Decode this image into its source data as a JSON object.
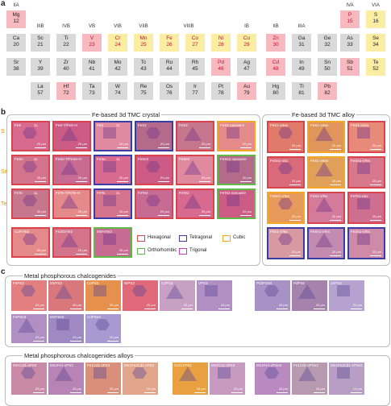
{
  "panels": {
    "a": "a",
    "b": "b",
    "c": "c"
  },
  "periodic_table": {
    "groups": [
      {
        "label": "IIA"
      },
      {
        "label": "IIIB"
      },
      {
        "label": "IVB"
      },
      {
        "label": "VB"
      },
      {
        "label": "VIB"
      },
      {
        "label": "VIIB"
      },
      {
        "label": "VIIIB"
      },
      {
        "label": "IB"
      },
      {
        "label": "IIB"
      },
      {
        "label": "IIIA"
      },
      {
        "label": "IVA"
      },
      {
        "label": "VIA"
      }
    ],
    "rows": [
      [
        {
          "s": "Mg",
          "n": "12",
          "c": "pink"
        }
      ],
      [
        {
          "s": "Ca",
          "n": "20",
          "c": "gray"
        },
        {
          "s": "Sc",
          "n": "21",
          "c": "gray"
        },
        {
          "s": "Ti",
          "n": "22",
          "c": "gray"
        },
        {
          "s": "V",
          "n": "23",
          "c": "pink",
          "red": true
        },
        {
          "s": "Cr",
          "n": "24",
          "c": "yellow",
          "red": true
        },
        {
          "s": "Mn",
          "n": "25",
          "c": "yellow",
          "red": true
        },
        {
          "s": "Fe",
          "n": "26",
          "c": "yellow",
          "red": true
        },
        {
          "s": "Co",
          "n": "27",
          "c": "yellow",
          "red": true
        },
        {
          "s": "Ni",
          "n": "28",
          "c": "yellow",
          "red": true
        },
        {
          "s": "Cu",
          "n": "29",
          "c": "yellow",
          "red": true
        },
        {
          "s": "Zn",
          "n": "30",
          "c": "pink",
          "red": true
        },
        {
          "s": "Ga",
          "n": "31",
          "c": "gray"
        },
        {
          "s": "Ge",
          "n": "32",
          "c": "gray"
        },
        {
          "s": "Se",
          "n": "34",
          "c": "yellow"
        }
      ],
      [
        {
          "s": "Sr",
          "n": "38",
          "c": "gray"
        },
        {
          "s": "Y",
          "n": "39",
          "c": "gray"
        },
        {
          "s": "Zr",
          "n": "40",
          "c": "gray"
        },
        {
          "s": "Nb",
          "n": "41",
          "c": "gray"
        },
        {
          "s": "Mo",
          "n": "42",
          "c": "gray"
        },
        {
          "s": "Tc",
          "n": "43",
          "c": "gray"
        },
        {
          "s": "Ru",
          "n": "44",
          "c": "gray"
        },
        {
          "s": "Rh",
          "n": "45",
          "c": "gray"
        },
        {
          "s": "Pd",
          "n": "46",
          "c": "pink",
          "red": true
        },
        {
          "s": "Ag",
          "n": "47",
          "c": "gray"
        },
        {
          "s": "Cd",
          "n": "48",
          "c": "pink",
          "red": true
        },
        {
          "s": "In",
          "n": "49",
          "c": "gray"
        },
        {
          "s": "Sn",
          "n": "50",
          "c": "gray"
        },
        {
          "s": "Te",
          "n": "52",
          "c": "yellow"
        }
      ],
      [
        {
          "s": "La",
          "n": "57",
          "c": "gray"
        },
        {
          "s": "Hf",
          "n": "72",
          "c": "pink"
        },
        {
          "s": "Ta",
          "n": "73",
          "c": "gray"
        },
        {
          "s": "W",
          "n": "74",
          "c": "gray"
        },
        {
          "s": "Re",
          "n": "75",
          "c": "gray"
        },
        {
          "s": "Os",
          "n": "76",
          "c": "gray"
        },
        {
          "s": "Ir",
          "n": "77",
          "c": "gray"
        },
        {
          "s": "Pt",
          "n": "78",
          "c": "gray"
        },
        {
          "s": "Au",
          "n": "79",
          "c": "pink"
        },
        {
          "s": "Hg",
          "n": "80",
          "c": "gray"
        },
        {
          "s": "Tl",
          "n": "81",
          "c": "gray"
        },
        {
          "s": "Pb",
          "n": "82",
          "c": "pink"
        }
      ]
    ],
    "extra": [
      {
        "s": "P",
        "n": "15",
        "c": "pink",
        "red": true
      },
      {
        "s": "S",
        "n": "16",
        "c": "yellow"
      },
      {
        "s": "As",
        "n": "33",
        "c": "gray"
      },
      {
        "s": "Sb",
        "n": "51",
        "c": "pink"
      }
    ]
  },
  "b": {
    "left_title": "Fe-based 3d TMC crystal",
    "right_title": "Fe-based 3d TMC alloy",
    "row_labels": [
      "S",
      "Se",
      "Te"
    ],
    "scale": "20 µm",
    "tiles_left": [
      {
        "l": "FeS",
        "s": "1L",
        "b": "#d9434b"
      },
      {
        "l": "FeS-T/FeS-H",
        "s": "",
        "b": "#d9434b"
      },
      {
        "l": "FeS",
        "s": "1L",
        "b": "#3b3ba8"
      },
      {
        "l": "FeS2",
        "s": "",
        "b": "#3b3ba8"
      },
      {
        "l": "FeS2",
        "s": "",
        "b": "#d9434b"
      },
      {
        "l": "FeS2 nanowire",
        "s": "",
        "b": "#f5a623"
      },
      {
        "l": "FeSe",
        "s": "1L",
        "b": "#d9434b"
      },
      {
        "l": "FeSe-T/FeSe-H",
        "s": "",
        "b": "#d9434b"
      },
      {
        "l": "FeSe",
        "s": "1L",
        "b": "#3b3ba8"
      },
      {
        "l": "FeSe2",
        "s": "",
        "b": "#d9434b"
      },
      {
        "l": "FeSe2",
        "s": "",
        "b": "#d9434b"
      },
      {
        "l": "FeSe2 nanowire",
        "s": "",
        "b": "#5dbb46"
      },
      {
        "l": "FeTe",
        "s": "1L",
        "b": "#d9434b"
      },
      {
        "l": "FeTe-T/FeTe-H",
        "s": "",
        "b": "#d9434b"
      },
      {
        "l": "FeTe",
        "s": "1L",
        "b": "#3b3ba8"
      },
      {
        "l": "FeTe2",
        "s": "",
        "b": "#d9434b"
      },
      {
        "l": "FeTe2",
        "s": "",
        "b": "#d9434b"
      },
      {
        "l": "FeTe2 nanowire",
        "s": "",
        "b": "#5dbb46"
      },
      {
        "l": "CuFeTe2",
        "s": "",
        "b": "#d9434b"
      },
      {
        "l": "Fe3GeTe2",
        "s": "",
        "b": "#d9434b"
      },
      {
        "l": "MnFeTe3",
        "s": "",
        "b": "#5dbb46"
      }
    ],
    "tiles_right": [
      {
        "l": "FeS1-xSex",
        "b": "#d9434b"
      },
      {
        "l": "FeS1-xSex",
        "b": "#f5a623"
      },
      {
        "l": "FeS1-xSex",
        "b": "#d9434b"
      },
      {
        "l": "FeSe1-xSx",
        "b": "#d9434b"
      },
      {
        "l": "FeS1-xSex",
        "b": "#f5a623"
      },
      {
        "l": "FeSe1-xTex",
        "b": "#d9434b"
      },
      {
        "l": "FeSe1-xTex",
        "b": "#f5a623"
      },
      {
        "l": "FeS1-xTex",
        "b": "#d9434b"
      },
      {
        "l": "FeTe1-xSx",
        "b": "#d9434b"
      },
      {
        "l": "FeS1-xTex",
        "b": "#3b3ba8"
      },
      {
        "l": "FeSe1-xTex",
        "b": "#3b3ba8"
      },
      {
        "l": "FeSe1-xTex",
        "b": "#3b3ba8"
      }
    ],
    "legend": [
      {
        "label": "Hexagonal",
        "color": "#d9434b"
      },
      {
        "label": "Tetragonal",
        "color": "#3b3ba8"
      },
      {
        "label": "Cubic",
        "color": "#f5a623"
      },
      {
        "label": "Orthorhombic",
        "color": "#5dbb46"
      },
      {
        "label": "Trigonal",
        "color": "#c83cb4"
      }
    ]
  },
  "c": {
    "title1": "Metal phosphorous chalcogenides",
    "title2": "Metal phosphorous chalcogenides alloys",
    "row1": [
      {
        "l": "FePS3",
        "sc": "20 µm"
      },
      {
        "l": "MnPS3",
        "sc": "40 µm"
      },
      {
        "l": "CoPS3",
        "sc": "20 µm"
      },
      {
        "l": "NiPS3",
        "sc": "20 µm"
      },
      {
        "l": "CdPS3",
        "sc": "20 µm"
      },
      {
        "l": "VPS3",
        "sc": "20 µm"
      },
      {
        "l": "Pd3P2S8",
        "sc": "20 µm"
      },
      {
        "l": "PdPSe",
        "sc": "20 µm"
      },
      {
        "l": "ZnPS3",
        "sc": "20 µm"
      }
    ],
    "row2": [
      {
        "l": "FePSe3",
        "sc": "20 µm"
      },
      {
        "l": "MnPSe3",
        "sc": "10 µm"
      },
      {
        "l": "CdPSe3",
        "sc": "10 µm"
      }
    ],
    "row3": [
      {
        "l": "Mn1Cd1-xPS3",
        "sc": "20 µm"
      },
      {
        "l": "Mn1Fe1-xPS3",
        "sc": "20 µm"
      },
      {
        "l": "Fe1Cd1-xPS3",
        "sc": "20 µm"
      },
      {
        "l": "Mn1Fe1Cd1-xPS3",
        "sc": "10 µm"
      },
      {
        "l": "CoCr1PS3",
        "sc": "20 µm"
      },
      {
        "l": "Mn1Co1-xPS3",
        "sc": "20 µm"
      },
      {
        "l": "Mn1Fe1-xPSe3",
        "sc": "20 µm"
      },
      {
        "l": "Fe1Cd1-xPSe3",
        "sc": "10 µm"
      },
      {
        "l": "Mn1Fe1Cd1-xPSe3",
        "sc": "10 µm"
      }
    ]
  }
}
